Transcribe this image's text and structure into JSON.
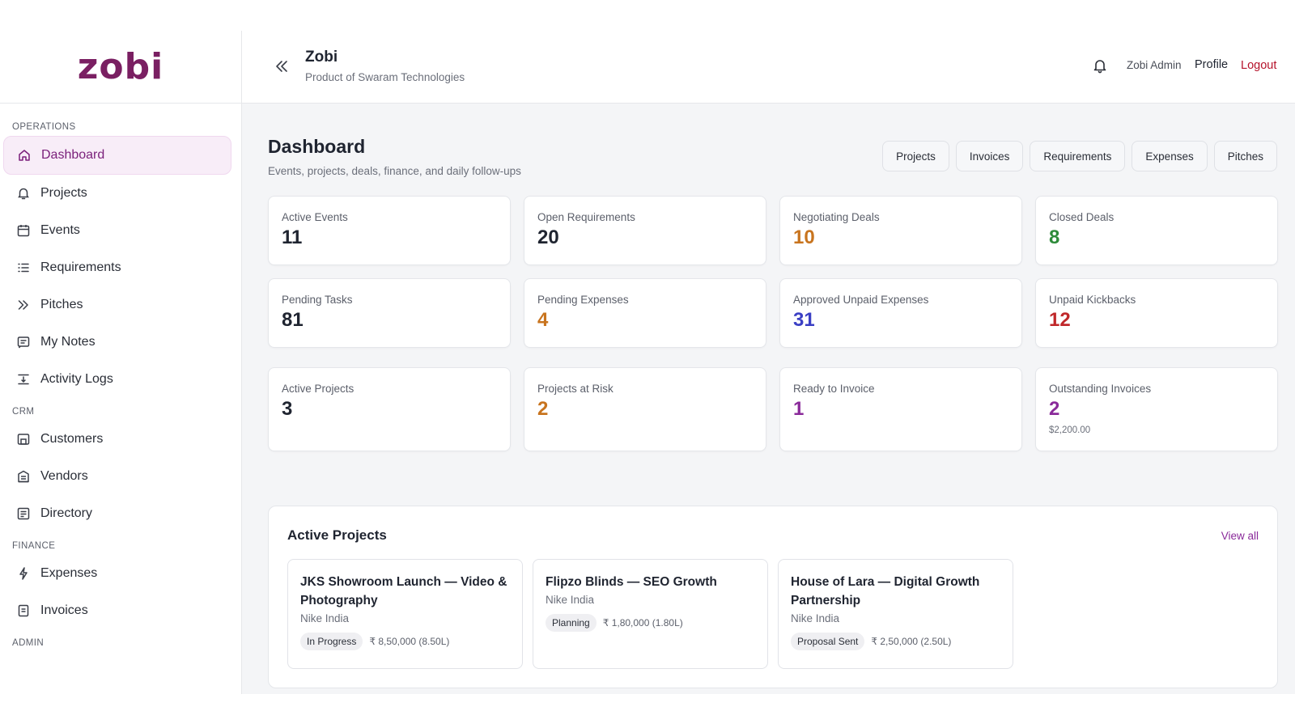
{
  "brand": {
    "logo": "zobi",
    "title": "Zobi",
    "subtitle": "Product of Swaram Technologies"
  },
  "header": {
    "user_name": "Zobi Admin",
    "profile": "Profile",
    "logout": "Logout"
  },
  "sidebar": {
    "sections": [
      {
        "label": "OPERATIONS",
        "items": [
          {
            "label": "Dashboard",
            "icon": "home-icon",
            "active": true
          },
          {
            "label": "Projects",
            "icon": "bell-icon"
          },
          {
            "label": "Events",
            "icon": "calendar-icon"
          },
          {
            "label": "Requirements",
            "icon": "list-icon"
          },
          {
            "label": "Pitches",
            "icon": "double-chevron-icon"
          },
          {
            "label": "My Notes",
            "icon": "notes-icon"
          },
          {
            "label": "Activity Logs",
            "icon": "logs-icon"
          }
        ]
      },
      {
        "label": "CRM",
        "items": [
          {
            "label": "Customers",
            "icon": "customers-icon"
          },
          {
            "label": "Vendors",
            "icon": "vendors-icon"
          },
          {
            "label": "Directory",
            "icon": "directory-icon"
          }
        ]
      },
      {
        "label": "FINANCE",
        "items": [
          {
            "label": "Expenses",
            "icon": "expenses-icon"
          },
          {
            "label": "Invoices",
            "icon": "invoices-icon"
          }
        ]
      },
      {
        "label": "ADMIN",
        "items": []
      }
    ]
  },
  "page": {
    "title": "Dashboard",
    "subtitle": "Events, projects, deals, finance, and daily follow-ups",
    "quick_links": [
      "Projects",
      "Invoices",
      "Requirements",
      "Expenses",
      "Pitches"
    ]
  },
  "stats": [
    [
      {
        "label": "Active Events",
        "value": "11",
        "color": "#1f2430"
      },
      {
        "label": "Open Requirements",
        "value": "20",
        "color": "#1f2430"
      },
      {
        "label": "Negotiating Deals",
        "value": "10",
        "color": "#c8741e"
      },
      {
        "label": "Closed Deals",
        "value": "8",
        "color": "#2e8b3a"
      }
    ],
    [
      {
        "label": "Pending Tasks",
        "value": "81",
        "color": "#1f2430"
      },
      {
        "label": "Pending Expenses",
        "value": "4",
        "color": "#c8741e"
      },
      {
        "label": "Approved Unpaid Expenses",
        "value": "31",
        "color": "#3b3fc4"
      },
      {
        "label": "Unpaid Kickbacks",
        "value": "12",
        "color": "#c0282a"
      }
    ],
    [
      {
        "label": "Active Projects",
        "value": "3",
        "color": "#1f2430"
      },
      {
        "label": "Projects at Risk",
        "value": "2",
        "color": "#c8741e"
      },
      {
        "label": "Ready to Invoice",
        "value": "1",
        "color": "#8a2a9a"
      },
      {
        "label": "Outstanding Invoices",
        "value": "2",
        "color": "#8a2a9a",
        "extra": "$2,200.00"
      }
    ]
  ],
  "active_projects": {
    "title": "Active Projects",
    "view_all": "View all",
    "items": [
      {
        "title": "JKS Showroom Launch — Video & Photography",
        "client": "Nike India",
        "status": "In Progress",
        "amount": "₹ 8,50,000 (8.50L)"
      },
      {
        "title": "Flipzo Blinds — SEO Growth",
        "client": "Nike India",
        "status": "Planning",
        "amount": "₹ 1,80,000 (1.80L)"
      },
      {
        "title": "House of Lara — Digital Growth Partnership",
        "client": "Nike India",
        "status": "Proposal Sent",
        "amount": "₹ 2,50,000 (2.50L)"
      }
    ]
  }
}
